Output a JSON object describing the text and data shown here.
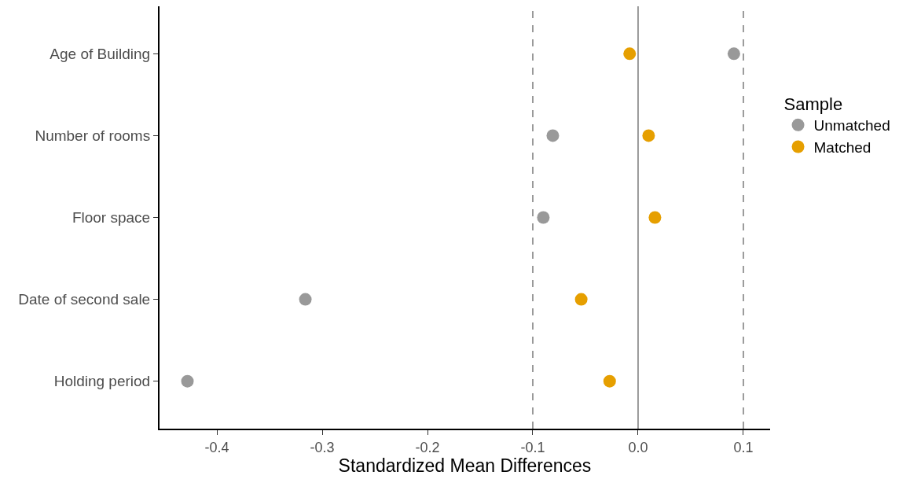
{
  "chart_data": {
    "type": "scatter",
    "orientation": "horizontal",
    "xlabel": "Standardized Mean Differences",
    "legend_title": "Sample",
    "legend": "right",
    "grid": false,
    "marker": "circle",
    "categories": [
      "Age of Building",
      "Number of rooms",
      "Floor space",
      "Date of second sale",
      "Holding period"
    ],
    "series": [
      {
        "name": "Unmatched",
        "color": "#999999",
        "values": [
          0.091,
          -0.081,
          -0.09,
          -0.316,
          -0.428
        ]
      },
      {
        "name": "Matched",
        "color": "#e69f00",
        "values": [
          -0.008,
          0.01,
          0.016,
          -0.054,
          -0.027
        ]
      }
    ],
    "xlim": [
      -0.4545,
      0.1254
    ],
    "xticks": [
      -0.4,
      -0.3,
      -0.2,
      -0.1,
      {
        "value": 0,
        "label": "0.0"
      },
      0.1
    ],
    "ref_lines": [
      {
        "axis": "x",
        "value": -0.1,
        "line_style": "dashed",
        "color": "#666666"
      },
      {
        "axis": "x",
        "value": 0,
        "line_style": "solid",
        "color": "#666666"
      },
      {
        "axis": "x",
        "value": 0.1,
        "line_style": "dashed",
        "color": "#666666"
      }
    ]
  }
}
